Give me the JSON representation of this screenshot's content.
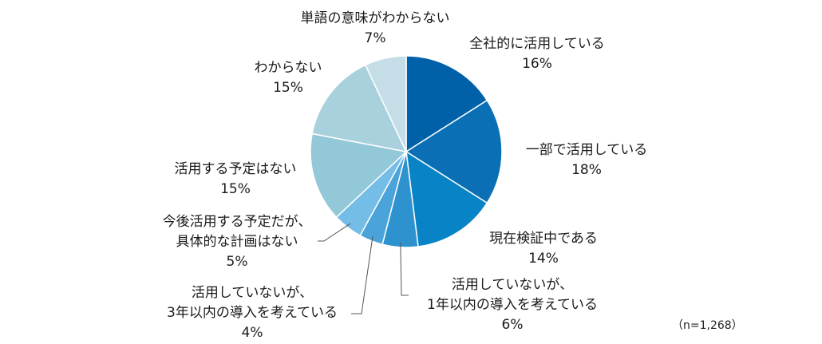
{
  "chart_data": {
    "type": "pie",
    "note": "（n=1,268）",
    "slices": [
      {
        "line1": "全社的に活用している",
        "line2": "",
        "pct_label": "16%",
        "value": 16,
        "color": "#0061a8"
      },
      {
        "line1": "一部で活用している",
        "line2": "",
        "pct_label": "18%",
        "value": 18,
        "color": "#0a6fb4"
      },
      {
        "line1": "現在検証中である",
        "line2": "",
        "pct_label": "14%",
        "value": 14,
        "color": "#0883c6"
      },
      {
        "line1": "活用していないが、",
        "line2": "1年以内の導入を考えている",
        "pct_label": "6%",
        "value": 6,
        "color": "#2e92ce"
      },
      {
        "line1": "活用していないが、",
        "line2": "3年以内の導入を考えている",
        "pct_label": "4%",
        "value": 4,
        "color": "#4aa3d9"
      },
      {
        "line1": "今後活用する予定だが、",
        "line2": "具体的な計画はない",
        "pct_label": "5%",
        "value": 5,
        "color": "#74bde6"
      },
      {
        "line1": "活用する予定はない",
        "line2": "",
        "pct_label": "15%",
        "value": 15,
        "color": "#93c8d9"
      },
      {
        "line1": "わからない",
        "line2": "",
        "pct_label": "15%",
        "value": 15,
        "color": "#a9d1dd"
      },
      {
        "line1": "単語の意味がわからない",
        "line2": "",
        "pct_label": "7%",
        "value": 7,
        "color": "#c4dde6"
      }
    ]
  }
}
